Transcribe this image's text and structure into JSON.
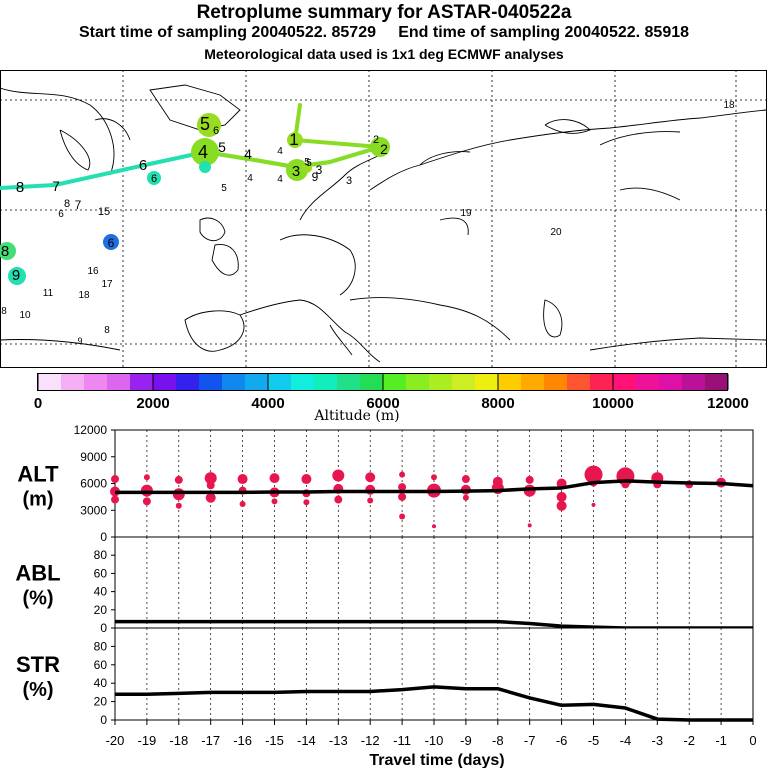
{
  "header": {
    "title": "Retroplume summary for ASTAR-040522a",
    "subtitle": "Start time of sampling 20040522. 85729     End time of sampling 20040522. 85918",
    "met_note": "Meteorological data used is 1x1 deg ECMWF analyses"
  },
  "colors": {
    "trajectory_low": "#22e0b0",
    "trajectory_high": "#88dd22",
    "points": "#e8164f",
    "line": "#000000"
  },
  "map": {
    "labels": [
      {
        "t": "5",
        "c": "#99dd22"
      },
      {
        "t": "6",
        "c": "#99dd22"
      },
      {
        "t": "4",
        "c": "#99dd22"
      },
      {
        "t": "5",
        "c": "#88dd22"
      },
      {
        "t": "4",
        "c": "#88dd22"
      },
      {
        "t": "3",
        "c": "#22e0b0"
      },
      {
        "t": "6",
        "c": "#22e0b0"
      },
      {
        "t": "6",
        "c": "#22e0b0"
      },
      {
        "t": "7",
        "c": "#22e0b0"
      },
      {
        "t": "8",
        "c": "#22e0b0"
      },
      {
        "t": "8",
        "c": "#22e0b0"
      },
      {
        "t": "6",
        "c": "#55dd77"
      },
      {
        "t": "7",
        "c": "#22e0b0"
      },
      {
        "t": "15",
        "c": "#22e0b0"
      },
      {
        "t": "8",
        "c": "#55dd77"
      },
      {
        "t": "9",
        "c": "#22e0b0"
      },
      {
        "t": "6",
        "c": "#1f6fe0"
      },
      {
        "t": "16",
        "c": "#22b0e0"
      },
      {
        "t": "17",
        "c": "#22b0e0"
      },
      {
        "t": "11",
        "c": "#8822ee"
      },
      {
        "t": "18",
        "c": "#cc66ee"
      },
      {
        "t": "10",
        "c": "#dd88ee"
      },
      {
        "t": "8",
        "c": "#2255ee"
      },
      {
        "t": "8",
        "c": "#ffffff"
      },
      {
        "t": "9",
        "c": "#ffffff"
      },
      {
        "t": "1",
        "c": "#99dd22"
      },
      {
        "t": "2",
        "c": "#99dd22"
      },
      {
        "t": "4",
        "c": "#99dd22"
      },
      {
        "t": "5",
        "c": "#99dd22"
      },
      {
        "t": "3",
        "c": "#99dd22"
      },
      {
        "t": "4",
        "c": "#99dd22"
      },
      {
        "t": "9",
        "c": "#99dd22"
      },
      {
        "t": "3",
        "c": "#22e0b0"
      },
      {
        "t": "5",
        "c": "#55dd77"
      },
      {
        "t": "4",
        "c": "#55dd77"
      },
      {
        "t": "19",
        "c": "#99dd22"
      },
      {
        "t": "20",
        "c": "#99dd22"
      },
      {
        "t": "18",
        "c": "#99dd22"
      },
      {
        "t": "2",
        "c": "#99dd22"
      },
      {
        "t": "5",
        "c": "#99dd22"
      }
    ]
  },
  "colorbar": {
    "colors": [
      "#fbe0fb",
      "#f5b0f5",
      "#ee88ee",
      "#dd66ee",
      "#9922ee",
      "#7711ee",
      "#3322ee",
      "#1155ee",
      "#1188ee",
      "#11aaee",
      "#11ccee",
      "#11eedd",
      "#11eebb",
      "#22e088",
      "#22dd55",
      "#55ee22",
      "#88ee22",
      "#aaee22",
      "#ccee22",
      "#eeee11",
      "#ffcc00",
      "#ffaa00",
      "#ff8800",
      "#ff5533",
      "#ff2255",
      "#ff1177",
      "#ee1199",
      "#dd11aa",
      "#bb1199",
      "#991177"
    ],
    "ticks": [
      "0",
      "2000",
      "4000",
      "6000",
      "8000",
      "10000",
      "12000"
    ],
    "label": "Altitude (m)"
  },
  "chart_data": [
    {
      "type": "scatter",
      "panel": "ALT",
      "ylabel": "ALT\n(m)",
      "ylabel_line1": "ALT",
      "ylabel_line2": "(m)",
      "ylim": [
        0,
        12000
      ],
      "yticks": [
        "0",
        "3000",
        "6000",
        "9000",
        "12000"
      ],
      "yticks_values": [
        0,
        3000,
        6000,
        9000,
        12000
      ],
      "xlim": [
        -20,
        0
      ],
      "points": [
        {
          "x": -20,
          "y": 6500,
          "s": 4
        },
        {
          "x": -20,
          "y": 5100,
          "s": 5
        },
        {
          "x": -20,
          "y": 4200,
          "s": 4
        },
        {
          "x": -19,
          "y": 6700,
          "s": 3
        },
        {
          "x": -19,
          "y": 5200,
          "s": 6
        },
        {
          "x": -19,
          "y": 4000,
          "s": 4
        },
        {
          "x": -18,
          "y": 6400,
          "s": 4
        },
        {
          "x": -18,
          "y": 4800,
          "s": 6
        },
        {
          "x": -18,
          "y": 3500,
          "s": 3
        },
        {
          "x": -17,
          "y": 6600,
          "s": 6
        },
        {
          "x": -17,
          "y": 5800,
          "s": 4
        },
        {
          "x": -17,
          "y": 4400,
          "s": 5
        },
        {
          "x": -16,
          "y": 6500,
          "s": 5
        },
        {
          "x": -16,
          "y": 5200,
          "s": 4
        },
        {
          "x": -16,
          "y": 3700,
          "s": 3
        },
        {
          "x": -15,
          "y": 6600,
          "s": 5
        },
        {
          "x": -15,
          "y": 5000,
          "s": 5
        },
        {
          "x": -15,
          "y": 4000,
          "s": 3
        },
        {
          "x": -14,
          "y": 6500,
          "s": 5
        },
        {
          "x": -14,
          "y": 4900,
          "s": 4
        },
        {
          "x": -14,
          "y": 3900,
          "s": 3
        },
        {
          "x": -13,
          "y": 6900,
          "s": 6
        },
        {
          "x": -13,
          "y": 5400,
          "s": 5
        },
        {
          "x": -13,
          "y": 4200,
          "s": 4
        },
        {
          "x": -12,
          "y": 6700,
          "s": 5
        },
        {
          "x": -12,
          "y": 5300,
          "s": 5
        },
        {
          "x": -12,
          "y": 4100,
          "s": 3
        },
        {
          "x": -11,
          "y": 7000,
          "s": 3
        },
        {
          "x": -11,
          "y": 5600,
          "s": 4
        },
        {
          "x": -11,
          "y": 4500,
          "s": 4
        },
        {
          "x": -11,
          "y": 2300,
          "s": 3
        },
        {
          "x": -10,
          "y": 6700,
          "s": 3
        },
        {
          "x": -10,
          "y": 5200,
          "s": 7
        },
        {
          "x": -10,
          "y": 1200,
          "s": 2
        },
        {
          "x": -9,
          "y": 6500,
          "s": 4
        },
        {
          "x": -9,
          "y": 5300,
          "s": 5
        },
        {
          "x": -9,
          "y": 4400,
          "s": 3
        },
        {
          "x": -8,
          "y": 6200,
          "s": 5
        },
        {
          "x": -8,
          "y": 5500,
          "s": 6
        },
        {
          "x": -7,
          "y": 6400,
          "s": 4
        },
        {
          "x": -7,
          "y": 5200,
          "s": 6
        },
        {
          "x": -7,
          "y": 1300,
          "s": 2
        },
        {
          "x": -6,
          "y": 6000,
          "s": 5
        },
        {
          "x": -6,
          "y": 4500,
          "s": 5
        },
        {
          "x": -6,
          "y": 3500,
          "s": 5
        },
        {
          "x": -5,
          "y": 7000,
          "s": 9
        },
        {
          "x": -5,
          "y": 6100,
          "s": 4
        },
        {
          "x": -5,
          "y": 3600,
          "s": 2
        },
        {
          "x": -4,
          "y": 6800,
          "s": 9
        },
        {
          "x": -4,
          "y": 5900,
          "s": 4
        },
        {
          "x": -3,
          "y": 6600,
          "s": 6
        },
        {
          "x": -3,
          "y": 5900,
          "s": 4
        },
        {
          "x": -2,
          "y": 5900,
          "s": 4
        },
        {
          "x": -1,
          "y": 6100,
          "s": 5
        }
      ],
      "line": {
        "x": [
          -20,
          -19,
          -18,
          -17,
          -16,
          -15,
          -14,
          -13,
          -12,
          -11,
          -10,
          -9,
          -8,
          -7,
          -6,
          -5,
          -4,
          -3,
          -2,
          -1,
          0
        ],
        "y": [
          5000,
          5000,
          5000,
          5000,
          5000,
          5050,
          5050,
          5100,
          5100,
          5100,
          5100,
          5150,
          5200,
          5400,
          5500,
          6100,
          6300,
          6150,
          6050,
          6000,
          5750
        ]
      }
    },
    {
      "type": "line",
      "panel": "ABL",
      "ylabel_line1": "ABL",
      "ylabel_line2": "(%)",
      "ylim": [
        0,
        100
      ],
      "yticks": [
        "0",
        "20",
        "40",
        "60",
        "80"
      ],
      "yticks_values": [
        0,
        20,
        40,
        60,
        80
      ],
      "xlim": [
        -20,
        0
      ],
      "x": [
        -20,
        -19,
        -18,
        -17,
        -16,
        -15,
        -14,
        -13,
        -12,
        -11,
        -10,
        -9,
        -8,
        -7,
        -6,
        -5,
        -4,
        -3,
        -2,
        -1,
        0
      ],
      "y": [
        7,
        7,
        7,
        7,
        7,
        7,
        7,
        7,
        7,
        7,
        7,
        7,
        7,
        5,
        2,
        1,
        0,
        0,
        0,
        0,
        0
      ]
    },
    {
      "type": "line",
      "panel": "STR",
      "ylabel_line1": "STR",
      "ylabel_line2": "(%)",
      "ylim": [
        0,
        100
      ],
      "yticks": [
        "0",
        "20",
        "40",
        "60",
        "80"
      ],
      "yticks_values": [
        0,
        20,
        40,
        60,
        80
      ],
      "xlim": [
        -20,
        0
      ],
      "xlabel": "Travel time (days)",
      "xticks": [
        "-20",
        "-19",
        "-18",
        "-17",
        "-16",
        "-15",
        "-14",
        "-13",
        "-12",
        "-11",
        "-10",
        "-9",
        "-8",
        "-7",
        "-6",
        "-5",
        "-4",
        "-3",
        "-2",
        "-1",
        "0"
      ],
      "xticks_values": [
        -20,
        -19,
        -18,
        -17,
        -16,
        -15,
        -14,
        -13,
        -12,
        -11,
        -10,
        -9,
        -8,
        -7,
        -6,
        -5,
        -4,
        -3,
        -2,
        -1,
        0
      ],
      "x": [
        -20,
        -19,
        -18,
        -17,
        -16,
        -15,
        -14,
        -13,
        -12,
        -11,
        -10,
        -9,
        -8,
        -7,
        -6,
        -5,
        -4,
        -3,
        -2,
        -1,
        0
      ],
      "y": [
        28,
        28,
        29,
        30,
        30,
        30,
        31,
        31,
        31,
        33,
        36,
        34,
        34,
        24,
        16,
        17,
        13,
        1,
        0,
        0,
        0
      ]
    }
  ]
}
